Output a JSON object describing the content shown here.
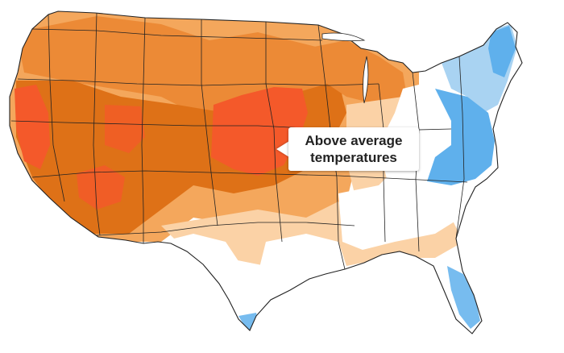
{
  "callout": {
    "line1": "Above average",
    "line2": "temperatures"
  },
  "colors": {
    "background": "#ffffff",
    "below_light": "#a9d3f2",
    "below": "#5fb0ec",
    "near_normal": "#ffffff",
    "above_light": "#fbd2a6",
    "above": "#f4a75c",
    "above_more": "#ec8a36",
    "above_much": "#de7117",
    "above_extreme": "#f4592a",
    "borders": "#222222"
  }
}
